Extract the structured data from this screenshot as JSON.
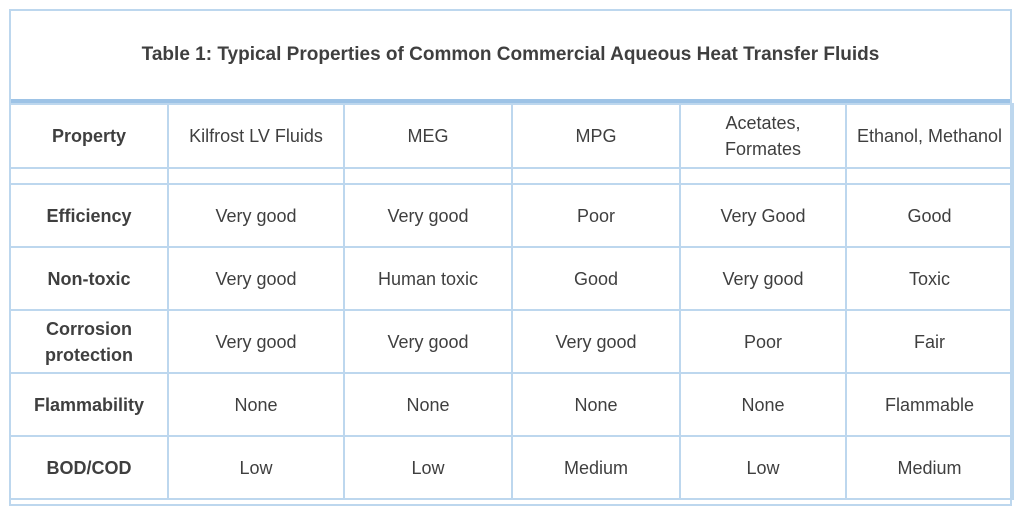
{
  "title": "Table 1: Typical Properties of Common Commercial Aqueous Heat Transfer Fluids",
  "headers": [
    "Property",
    "Kilfrost LV Fluids",
    "MEG",
    "MPG",
    "Acetates, Formates",
    "Ethanol, Methanol"
  ],
  "rows": [
    [
      "Efficiency",
      "Very good",
      "Very good",
      "Poor",
      "Very Good",
      "Good"
    ],
    [
      "Non-toxic",
      "Very good",
      "Human toxic",
      "Good",
      "Very good",
      "Toxic"
    ],
    [
      "Corrosion protection",
      "Very good",
      "Very good",
      "Very good",
      "Poor",
      "Fair"
    ],
    [
      "Flammability",
      "None",
      "None",
      "None",
      "None",
      "Flammable"
    ],
    [
      "BOD/COD",
      "Low",
      "Low",
      "Medium",
      "Low",
      "Medium"
    ]
  ],
  "colors": {
    "border": "#bdd7ee",
    "title_rule": "#9dc3e6",
    "text": "#3f3f3f"
  }
}
